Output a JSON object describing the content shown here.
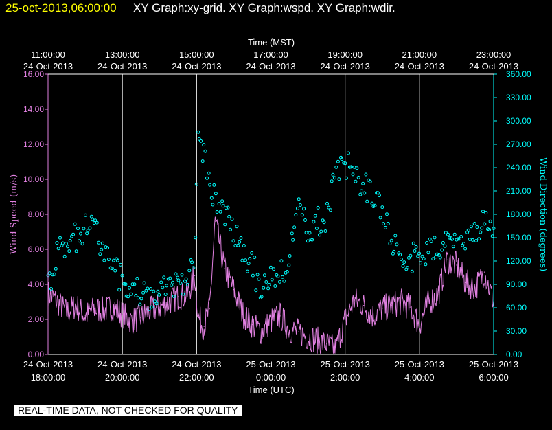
{
  "header": {
    "timestamp": "25-oct-2013,06:00:00",
    "graphs": "XY Graph:xy-grid.  XY Graph:wspd.  XY Graph:wdir."
  },
  "colors": {
    "background": "#000000",
    "speed": "#e080e0",
    "direction": "#00ffff",
    "grid": "#ffffff",
    "timestamp": "#ffff00"
  },
  "disclaimer": "REAL-TIME DATA, NOT CHECKED FOR QUALITY",
  "chart_data": {
    "type": "line",
    "top_axis": {
      "title": "Time (MST)",
      "ticks": [
        {
          "time": "11:00:00",
          "date": "24-Oct-2013"
        },
        {
          "time": "13:00:00",
          "date": "24-Oct-2013"
        },
        {
          "time": "15:00:00",
          "date": "24-Oct-2013"
        },
        {
          "time": "17:00:00",
          "date": "24-Oct-2013"
        },
        {
          "time": "19:00:00",
          "date": "24-Oct-2013"
        },
        {
          "time": "21:00:00",
          "date": "24-Oct-2013"
        },
        {
          "time": "23:00:00",
          "date": "24-Oct-2013"
        }
      ]
    },
    "bottom_axis": {
      "title": "Time (UTC)",
      "ticks": [
        {
          "date": "24-Oct-2013",
          "time": "18:00:00"
        },
        {
          "date": "24-Oct-2013",
          "time": "20:00:00"
        },
        {
          "date": "24-Oct-2013",
          "time": "22:00:00"
        },
        {
          "date": "25-Oct-2013",
          "time": "0:00:00"
        },
        {
          "date": "25-Oct-2013",
          "time": "2:00:00"
        },
        {
          "date": "25-Oct-2013",
          "time": "4:00:00"
        },
        {
          "date": "25-Oct-2013",
          "time": "6:00:00"
        }
      ]
    },
    "xlim_hours": [
      0,
      12
    ],
    "left_axis": {
      "label": "Wind Speed (m/s)",
      "ylim": [
        0,
        16
      ],
      "ticks": [
        "0.00",
        "2.00",
        "4.00",
        "6.00",
        "8.00",
        "10.00",
        "12.00",
        "14.00",
        "16.00"
      ]
    },
    "right_axis": {
      "label": "Wind Direction (degrees)",
      "ylim": [
        0,
        360
      ],
      "ticks": [
        "0.00",
        "30.00",
        "60.00",
        "90.00",
        "120.00",
        "150.00",
        "180.00",
        "210.00",
        "240.00",
        "270.00",
        "300.00",
        "330.00",
        "360.00"
      ]
    },
    "series": [
      {
        "name": "Wind Speed",
        "axis": "left",
        "style": "line",
        "x": [
          0.0,
          0.25,
          0.5,
          0.75,
          1.0,
          1.25,
          1.5,
          1.75,
          2.0,
          2.25,
          2.5,
          2.75,
          3.0,
          3.25,
          3.5,
          3.75,
          3.95,
          4.05,
          4.2,
          4.35,
          4.5,
          4.75,
          5.0,
          5.25,
          5.5,
          5.75,
          6.0,
          6.25,
          6.5,
          6.75,
          7.0,
          7.25,
          7.5,
          7.75,
          8.0,
          8.25,
          8.5,
          8.75,
          9.0,
          9.25,
          9.5,
          9.75,
          10.0,
          10.25,
          10.5,
          10.75,
          11.0,
          11.25,
          11.5,
          11.75,
          12.0
        ],
        "values": [
          3.5,
          3.0,
          2.4,
          2.8,
          2.2,
          2.6,
          2.5,
          2.7,
          2.3,
          1.9,
          2.1,
          2.5,
          2.7,
          3.0,
          3.3,
          3.4,
          4.5,
          2.1,
          1.6,
          2.6,
          7.6,
          4.9,
          3.7,
          2.3,
          1.7,
          1.3,
          1.9,
          2.2,
          1.4,
          1.3,
          1.0,
          0.8,
          0.6,
          0.3,
          2.0,
          3.1,
          2.8,
          2.2,
          2.6,
          2.8,
          3.0,
          2.7,
          1.7,
          3.0,
          3.4,
          5.4,
          5.1,
          4.1,
          3.8,
          4.7,
          3.0
        ]
      },
      {
        "name": "Wind Direction",
        "axis": "right",
        "style": "points",
        "x": [
          0.0,
          0.25,
          0.5,
          0.75,
          1.0,
          1.25,
          1.5,
          1.75,
          2.0,
          2.25,
          2.5,
          2.75,
          3.0,
          3.25,
          3.5,
          3.75,
          3.95,
          4.05,
          4.2,
          4.35,
          4.5,
          4.75,
          5.0,
          5.25,
          5.5,
          5.75,
          6.0,
          6.25,
          6.5,
          6.75,
          7.0,
          7.25,
          7.5,
          7.75,
          8.0,
          8.25,
          8.5,
          8.75,
          9.0,
          9.25,
          9.5,
          9.75,
          10.0,
          10.25,
          10.5,
          10.75,
          11.0,
          11.25,
          11.5,
          11.75,
          12.0
        ],
        "values": [
          85,
          130,
          140,
          150,
          160,
          162,
          130,
          110,
          95,
          85,
          80,
          75,
          80,
          85,
          90,
          96,
          115,
          300,
          250,
          225,
          200,
          180,
          160,
          135,
          115,
          80,
          95,
          105,
          110,
          205,
          160,
          170,
          175,
          235,
          245,
          230,
          220,
          200,
          180,
          150,
          130,
          124,
          125,
          130,
          140,
          150,
          155,
          150,
          160,
          175,
          155
        ]
      }
    ]
  }
}
